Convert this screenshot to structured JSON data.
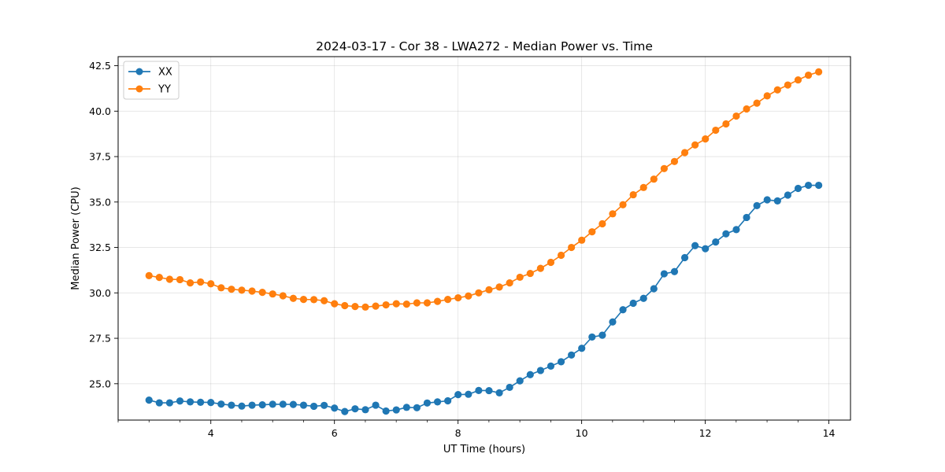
{
  "chart_data": {
    "type": "line",
    "title": "2024-03-17 - Cor 38 - LWA272 - Median Power vs. Time",
    "xlabel": "UT Time (hours)",
    "ylabel": "Median Power (CPU)",
    "xlim": [
      2.5,
      14.35
    ],
    "ylim": [
      23.0,
      43.0
    ],
    "xticks": [
      4,
      6,
      8,
      10,
      12,
      14
    ],
    "xtick_labels": [
      "4",
      "6",
      "8",
      "10",
      "12",
      "14"
    ],
    "x_minor_step": 0.5,
    "yticks": [
      25.0,
      27.5,
      30.0,
      32.5,
      35.0,
      37.5,
      40.0,
      42.5
    ],
    "ytick_labels": [
      "25.0",
      "27.5",
      "30.0",
      "32.5",
      "35.0",
      "37.5",
      "40.0",
      "42.5"
    ],
    "grid": true,
    "legend_position": "top-left",
    "x_start": 3.0,
    "x_step": 0.1667,
    "series": [
      {
        "name": "XX",
        "color": "#1f77b4",
        "values": [
          24.1,
          23.95,
          23.95,
          24.05,
          24.0,
          23.98,
          23.97,
          23.88,
          23.82,
          23.77,
          23.82,
          23.84,
          23.87,
          23.87,
          23.86,
          23.82,
          23.76,
          23.81,
          23.66,
          23.47,
          23.62,
          23.57,
          23.82,
          23.5,
          23.56,
          23.7,
          23.68,
          23.94,
          24.0,
          24.06,
          24.4,
          24.42,
          24.63,
          24.62,
          24.5,
          24.8,
          25.16,
          25.5,
          25.73,
          25.97,
          26.21,
          26.58,
          26.95,
          27.57,
          27.67,
          28.4,
          29.07,
          29.43,
          29.7,
          30.23,
          31.05,
          31.17,
          31.94,
          32.6,
          32.43,
          32.8,
          33.25,
          33.48,
          34.15,
          34.8,
          35.12,
          35.06,
          35.38,
          35.75,
          35.92,
          35.92
        ]
      },
      {
        "name": "YY",
        "color": "#ff7f0e",
        "values": [
          30.95,
          30.85,
          30.75,
          30.73,
          30.55,
          30.6,
          30.5,
          30.28,
          30.2,
          30.15,
          30.1,
          30.03,
          29.94,
          29.84,
          29.7,
          29.64,
          29.63,
          29.57,
          29.4,
          29.3,
          29.25,
          29.22,
          29.27,
          29.34,
          29.4,
          29.38,
          29.45,
          29.45,
          29.53,
          29.64,
          29.73,
          29.83,
          30.0,
          30.17,
          30.32,
          30.55,
          30.86,
          31.07,
          31.35,
          31.68,
          32.07,
          32.5,
          32.9,
          33.36,
          33.8,
          34.35,
          34.85,
          35.4,
          35.8,
          36.26,
          36.84,
          37.23,
          37.72,
          38.14,
          38.47,
          38.95,
          39.3,
          39.73,
          40.12,
          40.44,
          40.84,
          41.17,
          41.44,
          41.72,
          41.98,
          42.16
        ]
      }
    ]
  }
}
